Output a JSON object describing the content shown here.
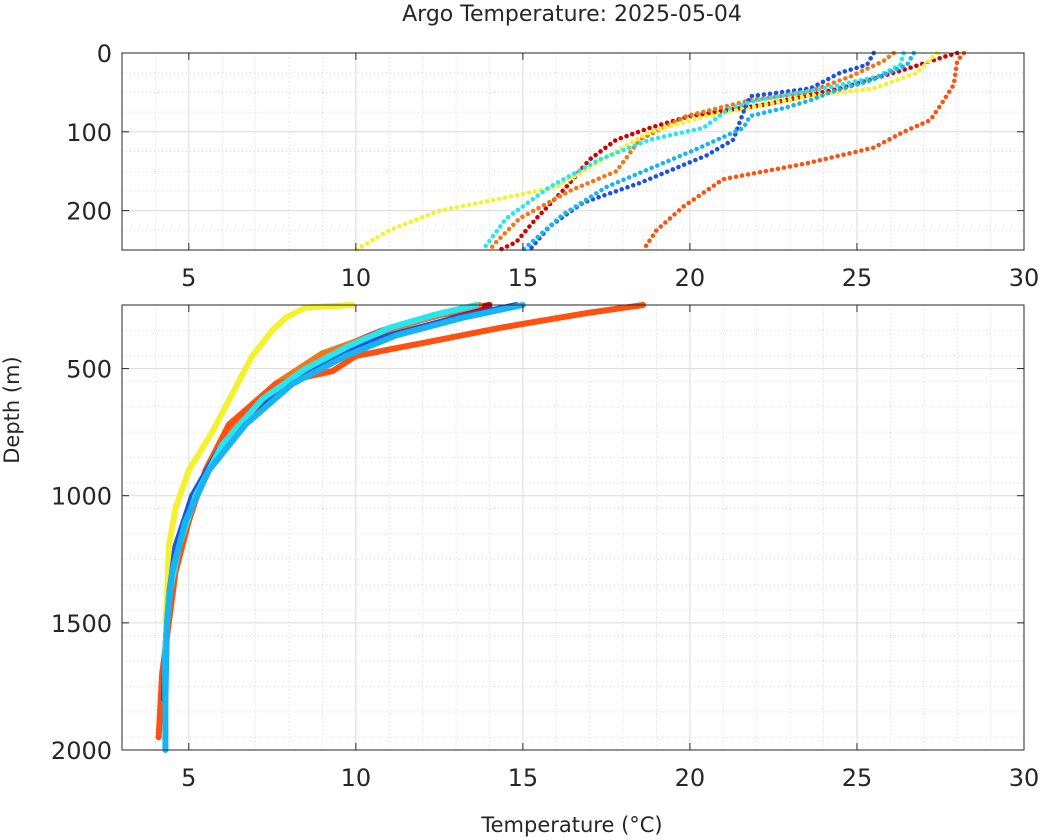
{
  "chart_data": [
    {
      "type": "line",
      "title": "Argo Temperature: 2025-05-04",
      "xlabel": "",
      "ylabel": "",
      "xlim": [
        3,
        30
      ],
      "ylim": [
        0,
        250
      ],
      "y_reversed": true,
      "grid": true,
      "minor_grid": true,
      "xticks": [
        5,
        10,
        15,
        20,
        25,
        30
      ],
      "xtick_labels": [
        "5",
        "10",
        "15",
        "20",
        "25",
        "30"
      ],
      "yticks": [
        0,
        100,
        200
      ],
      "ytick_labels": [
        "0",
        "100",
        "200"
      ],
      "series": [
        {
          "color": "#d10000",
          "points": [
            [
              28.0,
              0
            ],
            [
              27.6,
              5
            ],
            [
              26.5,
              20
            ],
            [
              24.5,
              45
            ],
            [
              22.3,
              65
            ],
            [
              20.0,
              80
            ],
            [
              18.8,
              95
            ],
            [
              17.8,
              110
            ],
            [
              17.0,
              135
            ],
            [
              16.3,
              170
            ],
            [
              15.4,
              210
            ],
            [
              14.8,
              240
            ],
            [
              14.3,
              250
            ]
          ]
        },
        {
          "color": "#f07818",
          "points": [
            [
              26.1,
              0
            ],
            [
              25.8,
              10
            ],
            [
              24.8,
              30
            ],
            [
              23.5,
              50
            ],
            [
              21.8,
              60
            ],
            [
              19.9,
              80
            ],
            [
              18.5,
              110
            ],
            [
              17.8,
              150
            ],
            [
              16.4,
              175
            ],
            [
              14.9,
              210
            ],
            [
              14.2,
              240
            ],
            [
              14.0,
              250
            ]
          ]
        },
        {
          "color": "#ff5010",
          "points": [
            [
              28.2,
              0
            ],
            [
              28.0,
              10
            ],
            [
              27.9,
              40
            ],
            [
              27.6,
              60
            ],
            [
              27.2,
              85
            ],
            [
              26.4,
              100
            ],
            [
              25.5,
              120
            ],
            [
              23.5,
              140
            ],
            [
              21.0,
              160
            ],
            [
              19.8,
              195
            ],
            [
              19.0,
              225
            ],
            [
              18.6,
              250
            ]
          ]
        },
        {
          "color": "#f2f22e",
          "points": [
            [
              27.4,
              0
            ],
            [
              27.2,
              8
            ],
            [
              26.8,
              25
            ],
            [
              25.5,
              45
            ],
            [
              23.5,
              55
            ],
            [
              20.5,
              80
            ],
            [
              18.8,
              100
            ],
            [
              17.6,
              130
            ],
            [
              16.0,
              170
            ],
            [
              14.3,
              185
            ],
            [
              12.5,
              200
            ],
            [
              11.0,
              225
            ],
            [
              10.0,
              250
            ]
          ]
        },
        {
          "color": "#1e50e6",
          "points": [
            [
              25.5,
              0
            ],
            [
              25.3,
              15
            ],
            [
              24.5,
              25
            ],
            [
              23.6,
              45
            ],
            [
              21.8,
              55
            ],
            [
              21.6,
              75
            ],
            [
              21.3,
              110
            ],
            [
              20.5,
              130
            ],
            [
              18.5,
              165
            ],
            [
              16.8,
              190
            ],
            [
              15.8,
              220
            ],
            [
              15.2,
              250
            ]
          ]
        },
        {
          "color": "#28e6f0",
          "points": [
            [
              26.4,
              0
            ],
            [
              26.3,
              15
            ],
            [
              25.6,
              30
            ],
            [
              24.0,
              45
            ],
            [
              22.0,
              60
            ],
            [
              21.2,
              70
            ],
            [
              20.4,
              95
            ],
            [
              18.8,
              110
            ],
            [
              17.3,
              135
            ],
            [
              15.8,
              170
            ],
            [
              14.5,
              210
            ],
            [
              13.8,
              250
            ]
          ]
        },
        {
          "color": "#18b4f0",
          "points": [
            [
              26.7,
              0
            ],
            [
              26.5,
              15
            ],
            [
              25.4,
              35
            ],
            [
              24.2,
              50
            ],
            [
              23.6,
              60
            ],
            [
              22.8,
              70
            ],
            [
              21.8,
              80
            ],
            [
              21.6,
              95
            ],
            [
              20.3,
              120
            ],
            [
              18.9,
              145
            ],
            [
              17.5,
              170
            ],
            [
              16.2,
              205
            ],
            [
              15.0,
              250
            ]
          ]
        }
      ]
    },
    {
      "type": "line",
      "title": "",
      "xlabel": "Temperature (°C)",
      "ylabel": "Depth (m)",
      "xlim": [
        3,
        30
      ],
      "ylim": [
        250,
        2000
      ],
      "y_reversed": true,
      "grid": true,
      "minor_grid": true,
      "xticks": [
        5,
        10,
        15,
        20,
        25,
        30
      ],
      "xtick_labels": [
        "5",
        "10",
        "15",
        "20",
        "25",
        "30"
      ],
      "yticks": [
        500,
        1000,
        1500,
        2000
      ],
      "ytick_labels": [
        "500",
        "1000",
        "1500",
        "2000"
      ],
      "series": [
        {
          "color": "#d10000",
          "points": [
            [
              14.0,
              250
            ],
            [
              12.5,
              290
            ],
            [
              10.8,
              350
            ],
            [
              9.5,
              420
            ],
            [
              8.0,
              540
            ],
            [
              6.7,
              700
            ],
            [
              5.6,
              900
            ],
            [
              5.0,
              1050
            ],
            [
              4.6,
              1200
            ],
            [
              4.4,
              1400
            ],
            [
              4.3,
              1600
            ],
            [
              4.25,
              1800
            ]
          ]
        },
        {
          "color": "#f07818",
          "points": [
            [
              13.7,
              250
            ],
            [
              12.2,
              300
            ],
            [
              10.5,
              370
            ],
            [
              9.0,
              440
            ],
            [
              7.6,
              560
            ],
            [
              6.5,
              700
            ],
            [
              5.6,
              880
            ],
            [
              5.0,
              1050
            ],
            [
              4.6,
              1200
            ],
            [
              4.4,
              1400
            ],
            [
              4.3,
              1600
            ],
            [
              4.25,
              1800
            ]
          ]
        },
        {
          "color": "#ff5010",
          "points": [
            [
              18.6,
              250
            ],
            [
              17.0,
              280
            ],
            [
              14.3,
              340
            ],
            [
              12.0,
              400
            ],
            [
              10.0,
              450
            ],
            [
              9.3,
              510
            ],
            [
              7.6,
              560
            ],
            [
              6.2,
              720
            ],
            [
              5.5,
              900
            ],
            [
              5.0,
              1100
            ],
            [
              4.6,
              1300
            ],
            [
              4.4,
              1500
            ],
            [
              4.2,
              1700
            ],
            [
              4.1,
              1950
            ]
          ]
        },
        {
          "color": "#f2f22e",
          "points": [
            [
              9.9,
              250
            ],
            [
              8.5,
              260
            ],
            [
              7.9,
              300
            ],
            [
              7.5,
              350
            ],
            [
              6.9,
              450
            ],
            [
              6.3,
              600
            ],
            [
              5.7,
              750
            ],
            [
              5.0,
              900
            ],
            [
              4.6,
              1050
            ],
            [
              4.4,
              1200
            ],
            [
              4.35,
              1400
            ],
            [
              4.3,
              1500
            ]
          ]
        },
        {
          "color": "#1e50e6",
          "points": [
            [
              14.8,
              250
            ],
            [
              13.0,
              300
            ],
            [
              11.0,
              370
            ],
            [
              9.6,
              440
            ],
            [
              8.2,
              530
            ],
            [
              7.0,
              650
            ],
            [
              5.9,
              820
            ],
            [
              5.1,
              1000
            ],
            [
              4.6,
              1200
            ],
            [
              4.4,
              1400
            ],
            [
              4.3,
              1600
            ],
            [
              4.25,
              1800
            ]
          ]
        },
        {
          "color": "#28e6f0",
          "points": [
            [
              13.6,
              250
            ],
            [
              12.3,
              290
            ],
            [
              11.0,
              340
            ],
            [
              9.8,
              410
            ],
            [
              8.5,
              500
            ],
            [
              7.2,
              620
            ],
            [
              6.0,
              800
            ],
            [
              5.2,
              1000
            ],
            [
              4.7,
              1200
            ],
            [
              4.4,
              1400
            ],
            [
              4.3,
              1600
            ],
            [
              4.3,
              1800
            ]
          ]
        },
        {
          "color": "#18b4f0",
          "points": [
            [
              15.0,
              250
            ],
            [
              13.2,
              300
            ],
            [
              11.2,
              370
            ],
            [
              9.7,
              450
            ],
            [
              8.1,
              560
            ],
            [
              6.7,
              720
            ],
            [
              5.6,
              900
            ],
            [
              4.9,
              1100
            ],
            [
              4.5,
              1300
            ],
            [
              4.35,
              1500
            ],
            [
              4.3,
              1800
            ],
            [
              4.3,
              2000
            ]
          ]
        }
      ]
    }
  ]
}
